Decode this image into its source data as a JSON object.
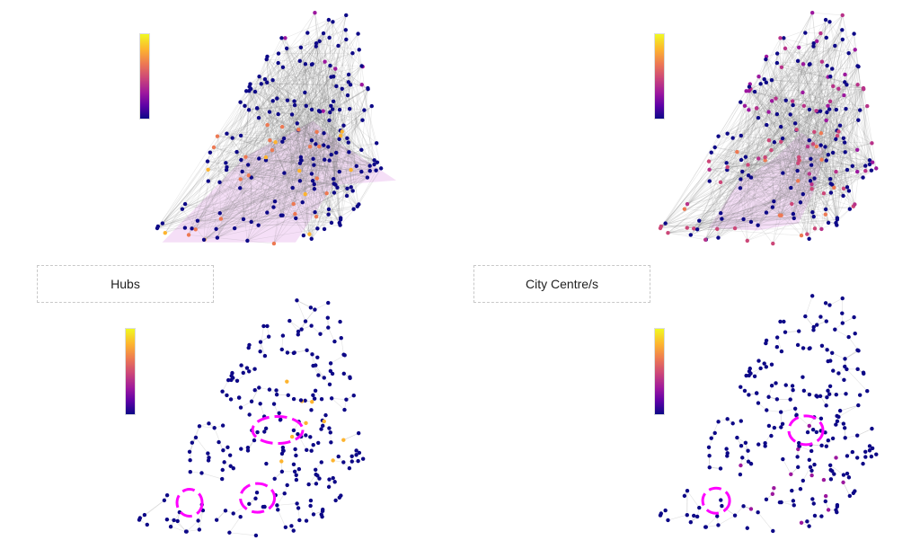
{
  "labels": {
    "left": "Hubs",
    "right": "City Centre/s"
  },
  "colors": {
    "node_default": "#0d0887",
    "node_hub": "#fdb42f",
    "node_mid": "#9c179e",
    "node_high": "#ed7953",
    "edge": "#bdbdbd",
    "hull": "#e9b8ee",
    "highlight_ring": "#ff00ff"
  },
  "panels": [
    {
      "id": "top-left",
      "type": "dense-network",
      "has_hull": true,
      "colorbar": true
    },
    {
      "id": "top-right",
      "type": "dense-network",
      "has_hull": true,
      "colorbar": true
    },
    {
      "id": "bottom-left",
      "type": "sparse-network",
      "highlight_rings": 3,
      "colorbar": true
    },
    {
      "id": "bottom-right",
      "type": "sparse-network",
      "highlight_rings": 2,
      "colorbar": true
    }
  ]
}
